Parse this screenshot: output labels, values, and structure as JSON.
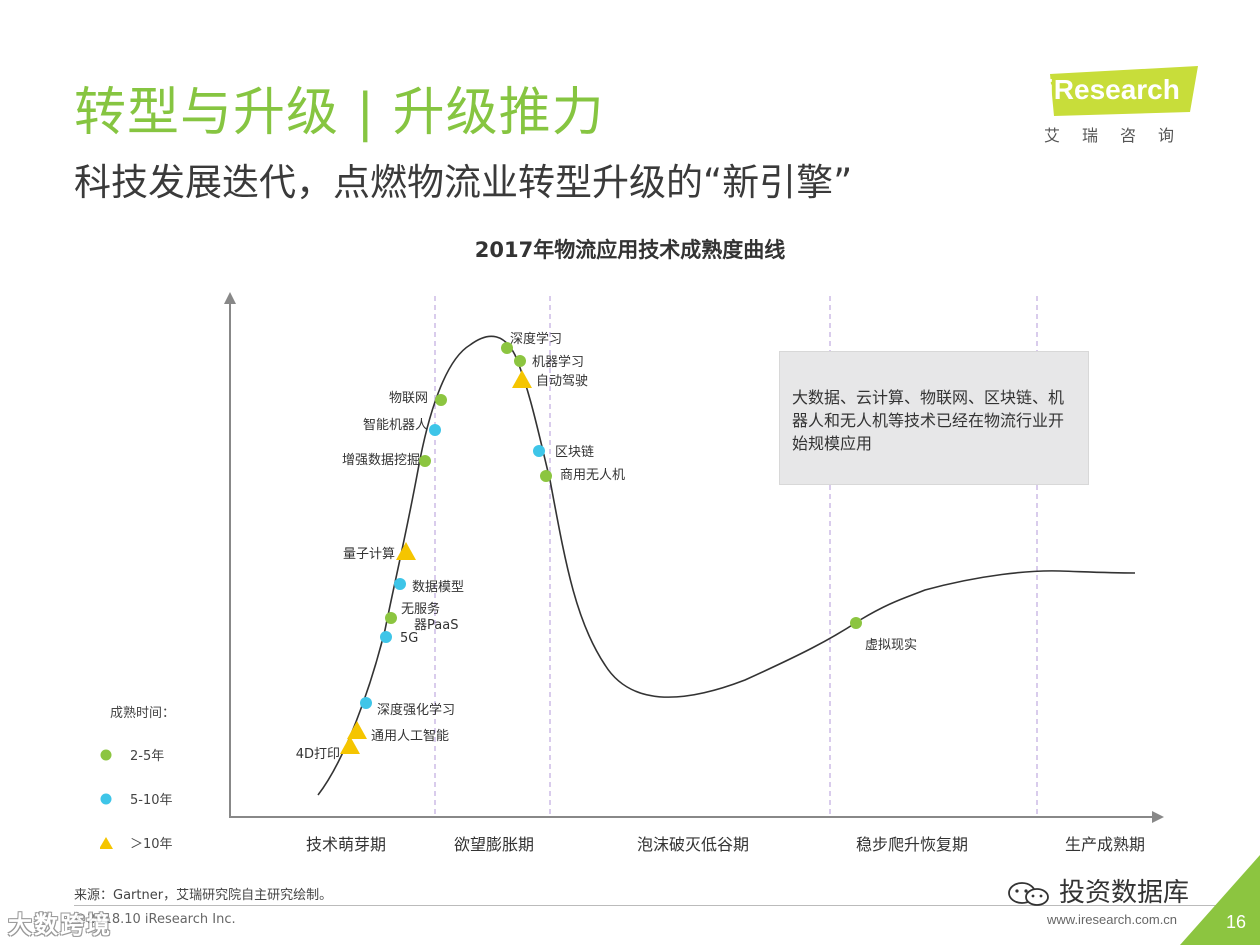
{
  "header": {
    "title": "转型与升级 | 升级推力",
    "subtitle": "科技发展迭代，点燃物流业转型升级的“新引擎”"
  },
  "logo": {
    "name": "iResearch",
    "cn": "艾瑞咨询",
    "color": "#c8dd3a"
  },
  "chart_data": {
    "type": "scatter",
    "title": "2017年物流应用技术成熟度曲线",
    "xlabel": "",
    "ylabel": "",
    "grid": false,
    "phases": [
      "技术萌芽期",
      "欲望膨胀期",
      "泡沫破灭低谷期",
      "稳步爬升恢复期",
      "生产成熟期"
    ],
    "legend": {
      "title": "成熟时间：",
      "placement": "bottom-left",
      "entries": [
        {
          "label": "2-5年",
          "shape": "circle",
          "color": "#8cc540"
        },
        {
          "label": "5-10年",
          "shape": "circle",
          "color": "#3ec5e8"
        },
        {
          "label": "＞10年",
          "shape": "triangle",
          "color": "#f5c500"
        }
      ]
    },
    "points": [
      {
        "label": "深度学习",
        "maturity": "2-5年"
      },
      {
        "label": "机器学习",
        "maturity": "2-5年"
      },
      {
        "label": "自动驾驶",
        "maturity": "＞10年"
      },
      {
        "label": "物联网",
        "maturity": "2-5年"
      },
      {
        "label": "智能机器人",
        "maturity": "5-10年"
      },
      {
        "label": "增强数据挖掘",
        "maturity": "2-5年"
      },
      {
        "label": "区块链",
        "maturity": "5-10年"
      },
      {
        "label": "商用无人机",
        "maturity": "2-5年"
      },
      {
        "label": "量子计算",
        "maturity": "＞10年"
      },
      {
        "label": "数据模型",
        "maturity": "5-10年"
      },
      {
        "label": "无服务器PaaS",
        "maturity": "2-5年"
      },
      {
        "label": "5G",
        "maturity": "5-10年"
      },
      {
        "label": "深度强化学习",
        "maturity": "5-10年"
      },
      {
        "label": "通用人工智能",
        "maturity": "＞10年"
      },
      {
        "label": "4D打印",
        "maturity": "＞10年"
      },
      {
        "label": "虚拟现实",
        "maturity": "2-5年"
      }
    ],
    "annotation": "大数据、云计算、物联网、区块链、机器人和无人机等技术已经在物流行业开始规模应用"
  },
  "footer": {
    "source": "来源：Gartner，艾瑞研究院自主研究绘制。",
    "copyright": "©2018.10 iResearch Inc.",
    "url": "www.iresearch.com.cn",
    "page": "16",
    "wechat": "投资数据库",
    "watermark": "大数跨境"
  }
}
